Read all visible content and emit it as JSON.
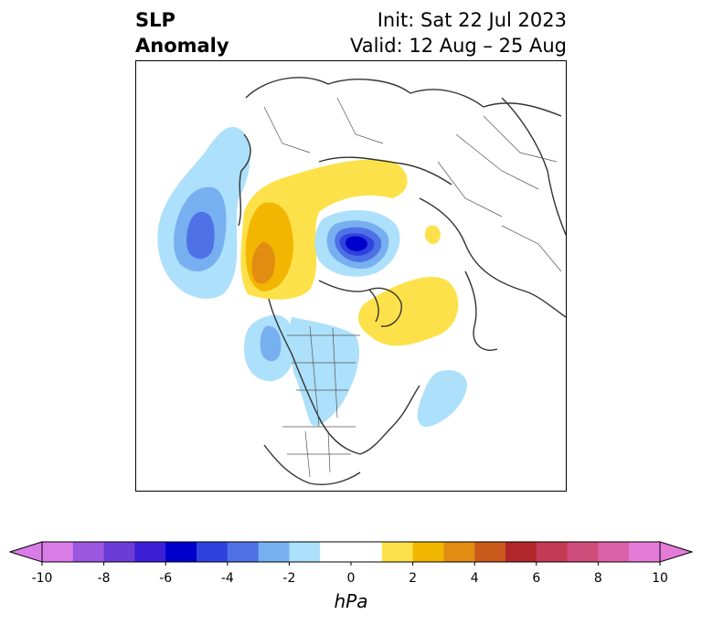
{
  "title": {
    "left_line1": "SLP",
    "left_line2": "Anomaly",
    "init": "Init: Sat 22 Jul 2023",
    "valid": "Valid: 12 Aug – 25 Aug"
  },
  "colorbar": {
    "unit": "hPa",
    "min": -10,
    "max": 10,
    "step": 1,
    "extend": "both",
    "bins": [
      {
        "from": -10,
        "to": -9,
        "color": "#d97ce8"
      },
      {
        "from": -9,
        "to": -8,
        "color": "#9b57e0"
      },
      {
        "from": -8,
        "to": -7,
        "color": "#6c3cd8"
      },
      {
        "from": -7,
        "to": -6,
        "color": "#3b1fd4"
      },
      {
        "from": -6,
        "to": -5,
        "color": "#0000cd"
      },
      {
        "from": -5,
        "to": -4,
        "color": "#2e43de"
      },
      {
        "from": -4,
        "to": -3,
        "color": "#4e72e6"
      },
      {
        "from": -3,
        "to": -2,
        "color": "#78aff0"
      },
      {
        "from": -2,
        "to": -1,
        "color": "#ade0fa"
      },
      {
        "from": -1,
        "to": 0,
        "color": "#ffffff"
      },
      {
        "from": 0,
        "to": 1,
        "color": "#ffffff"
      },
      {
        "from": 1,
        "to": 2,
        "color": "#fde14a"
      },
      {
        "from": 2,
        "to": 3,
        "color": "#f2b600"
      },
      {
        "from": 3,
        "to": 4,
        "color": "#e08d12"
      },
      {
        "from": 4,
        "to": 5,
        "color": "#c95a1c"
      },
      {
        "from": 5,
        "to": 6,
        "color": "#b0262a"
      },
      {
        "from": 6,
        "to": 7,
        "color": "#c33a55"
      },
      {
        "from": 7,
        "to": 8,
        "color": "#cf4d7a"
      },
      {
        "from": 8,
        "to": 9,
        "color": "#db62a8"
      },
      {
        "from": 9,
        "to": 10,
        "color": "#e57bd8"
      }
    ],
    "under_color": "#d97ce8",
    "over_color": "#e57bd8",
    "ticks": [
      {
        "value": -10,
        "label": "-10"
      },
      {
        "value": -8,
        "label": "-8"
      },
      {
        "value": -6,
        "label": "-6"
      },
      {
        "value": -4,
        "label": "-4"
      },
      {
        "value": -2,
        "label": "-2"
      },
      {
        "value": 0,
        "label": "0"
      },
      {
        "value": 2,
        "label": "2"
      },
      {
        "value": 4,
        "label": "4"
      },
      {
        "value": 6,
        "label": "6"
      },
      {
        "value": 8,
        "label": "8"
      },
      {
        "value": 10,
        "label": "10"
      }
    ]
  }
}
